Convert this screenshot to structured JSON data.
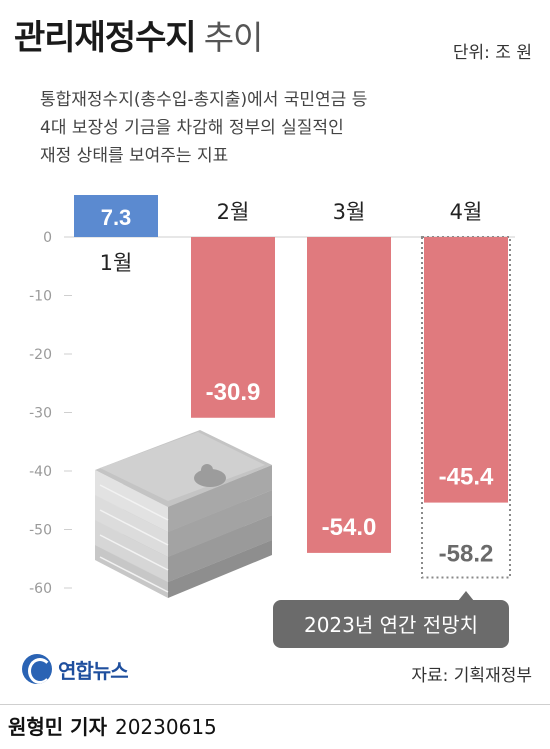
{
  "header": {
    "title": "관리재정수지",
    "title_suffix": "추이",
    "unit": "단위: 조 원"
  },
  "description": [
    "통합재정수지(총수입-총지출)에서 국민연금 등",
    "4대 보장성 기금을 차감해 정부의 실질적인",
    "재정 상태를 보여주는 지표"
  ],
  "chart_data": {
    "type": "bar",
    "categories": [
      "1월",
      "2월",
      "3월",
      "4월"
    ],
    "values": [
      7.3,
      -30.9,
      -54.0,
      -45.4
    ],
    "value_labels": [
      "7.3",
      "-30.9",
      "-54.0",
      "-45.4"
    ],
    "projection": {
      "category": "4월",
      "value": -58.2,
      "label": "-58.2",
      "note": "2023년 연간 전망치"
    },
    "ylim": [
      -60,
      0
    ],
    "yticks": [
      0,
      -10,
      -20,
      -30,
      -40,
      -50,
      -60
    ],
    "ytick_labels": [
      "0",
      "-10",
      "-20",
      "-30",
      "-40",
      "-50",
      "-60"
    ],
    "colors": {
      "positive": "#5b8ad0",
      "negative": "#e07a7e",
      "projection_border": "#8a8a8a",
      "projection_label": "#6a6a6a",
      "note_bg": "#6b6b6b"
    }
  },
  "illustration": "money-stack-icon",
  "footer": {
    "logo_text": "연합뉴스",
    "source": "자료: 기획재정부",
    "reporter": "원형민 기자",
    "date": "20230615"
  }
}
